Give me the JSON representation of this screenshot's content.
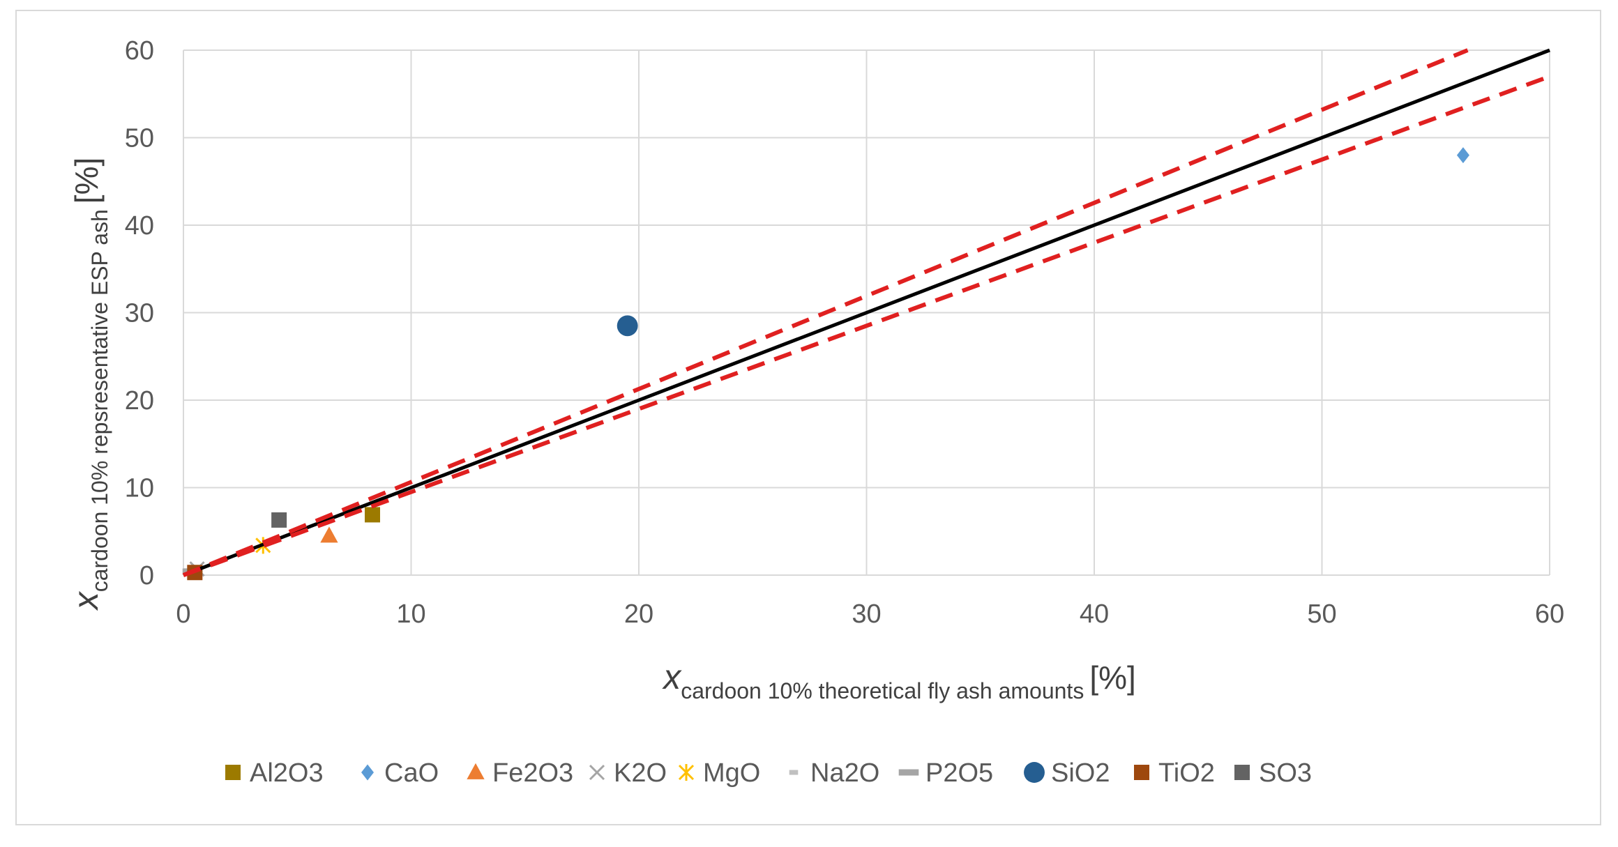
{
  "chart_data": {
    "type": "scatter",
    "title": "",
    "xlabel": {
      "main": "x",
      "subscript": "cardoon 10% theoretical fly ash amounts",
      "unit": "[%]"
    },
    "ylabel": {
      "main": "x",
      "subscript": "cardoon 10%  repsresentative ESP ash",
      "unit": "[%]"
    },
    "xlim": [
      0,
      60
    ],
    "ylim": [
      0,
      60
    ],
    "xticks": [
      "0",
      "10",
      "20",
      "30",
      "40",
      "50",
      "60"
    ],
    "yticks": [
      "0",
      "10",
      "20",
      "30",
      "40",
      "50",
      "60"
    ],
    "grid": true,
    "legend_position": "bottom",
    "series": [
      {
        "name": "Al2O3",
        "marker": "square",
        "color": "#9c7a00",
        "x": 8.3,
        "y": 6.9
      },
      {
        "name": "CaO",
        "marker": "diamond",
        "color": "#5b9bd5",
        "x": 56.2,
        "y": 48.0
      },
      {
        "name": "Fe2O3",
        "marker": "triangle",
        "color": "#ed7d31",
        "x": 6.4,
        "y": 4.5
      },
      {
        "name": "K2O",
        "marker": "x",
        "color": "#a5a5a5",
        "x": 0.6,
        "y": 0.7
      },
      {
        "name": "MgO",
        "marker": "star",
        "color": "#ffc000",
        "x": 3.5,
        "y": 3.4
      },
      {
        "name": "Na2O",
        "marker": "dash-short",
        "color": "#c0c0c0",
        "x": 0.2,
        "y": 0.5
      },
      {
        "name": "P2O5",
        "marker": "dash-long",
        "color": "#a5a5a5",
        "x": 0.4,
        "y": 0.4
      },
      {
        "name": "SiO2",
        "marker": "circle",
        "color": "#255e91",
        "x": 19.5,
        "y": 28.5
      },
      {
        "name": "TiO2",
        "marker": "square",
        "color": "#9e480e",
        "x": 0.5,
        "y": 0.3
      },
      {
        "name": "SO3",
        "marker": "square",
        "color": "#636363",
        "x": 4.2,
        "y": 6.3
      }
    ],
    "reference_lines": [
      {
        "name": "y = x",
        "style": "solid",
        "color": "#000000",
        "x": [
          0,
          60
        ],
        "y": [
          0,
          60
        ]
      },
      {
        "name": "upper bound",
        "style": "dashed",
        "color": "#e02020",
        "x": [
          0,
          56.4
        ],
        "y": [
          0,
          60
        ]
      },
      {
        "name": "lower bound",
        "style": "dashed",
        "color": "#e02020",
        "x": [
          0,
          60
        ],
        "y": [
          0,
          57
        ]
      }
    ]
  }
}
